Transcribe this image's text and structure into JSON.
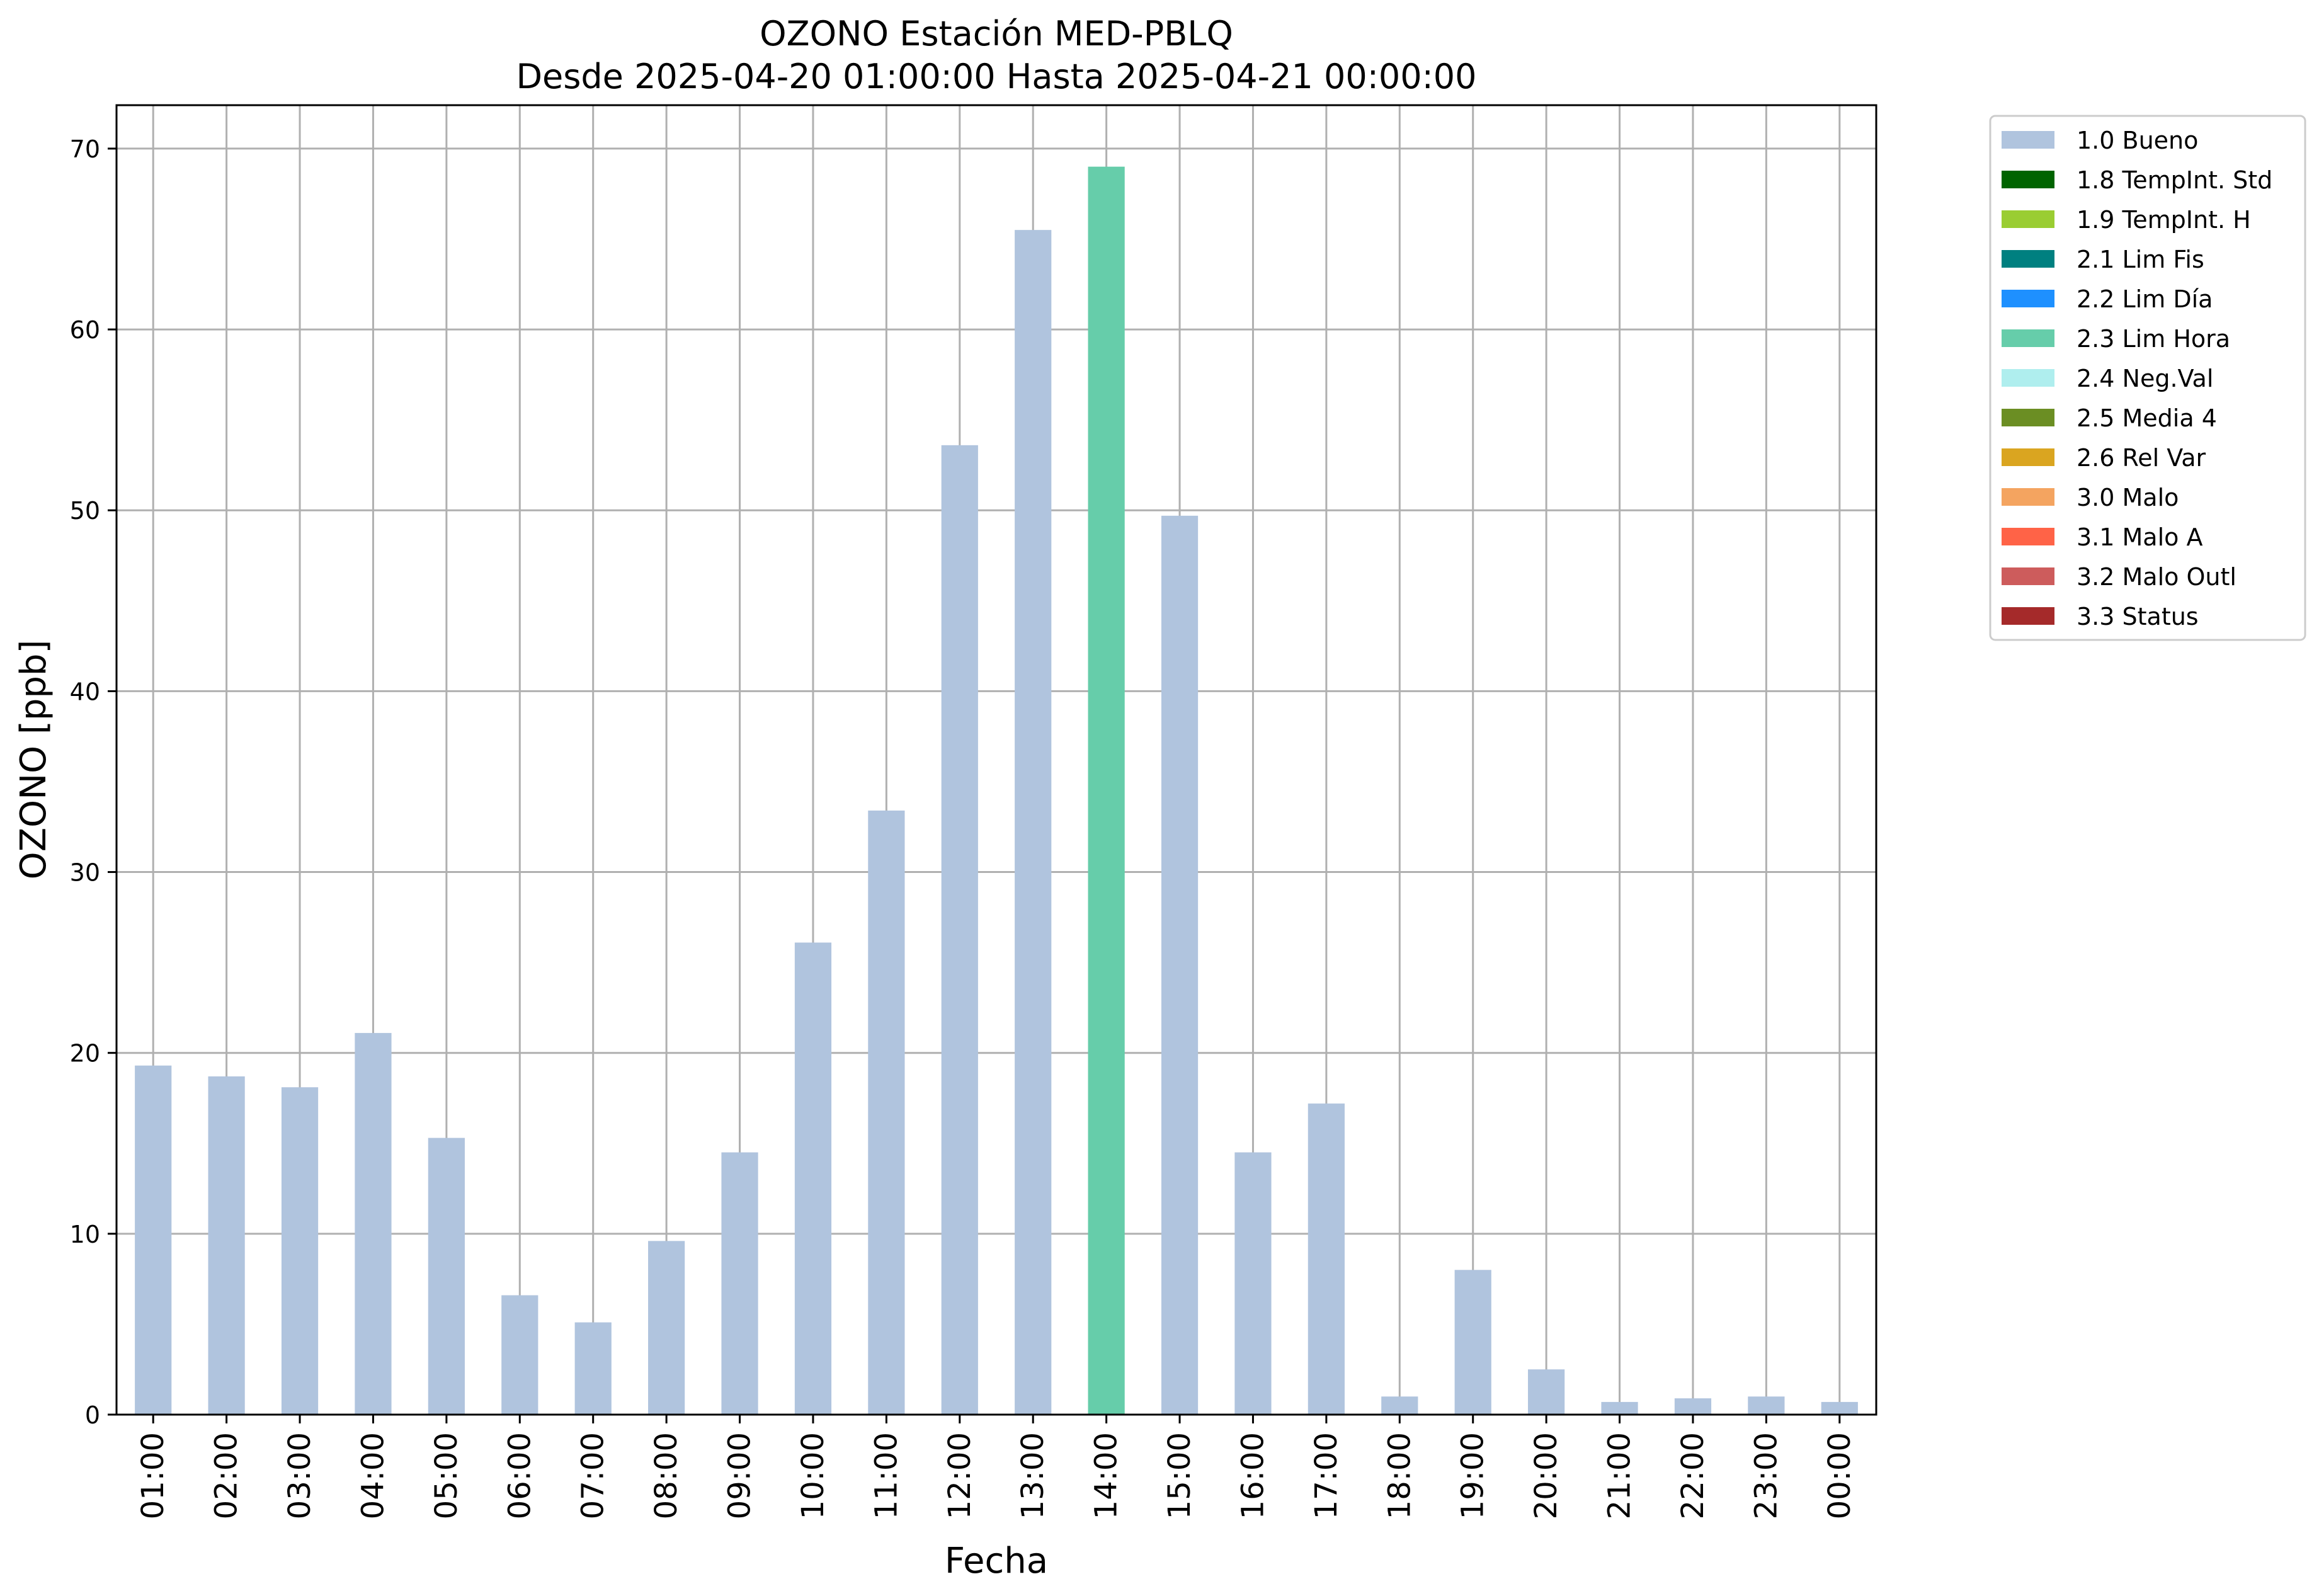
{
  "chart_data": {
    "type": "bar",
    "title": "OZONO Estación MED-PBLQ",
    "subtitle": "Desde 2025-04-20 01:00:00 Hasta 2025-04-21 00:00:00",
    "xlabel": "Fecha",
    "ylabel": "OZONO [ppb]",
    "ylim": [
      0,
      72.4
    ],
    "yticks": [
      "0",
      "10",
      "20",
      "30",
      "40",
      "50",
      "60",
      "70"
    ],
    "grid": true,
    "legend_position": "outside right, top",
    "categories": [
      "01:00",
      "02:00",
      "03:00",
      "04:00",
      "05:00",
      "06:00",
      "07:00",
      "08:00",
      "09:00",
      "10:00",
      "11:00",
      "12:00",
      "13:00",
      "14:00",
      "15:00",
      "16:00",
      "17:00",
      "18:00",
      "19:00",
      "20:00",
      "21:00",
      "22:00",
      "23:00",
      "00:00"
    ],
    "values": [
      19.3,
      18.7,
      18.1,
      21.1,
      15.3,
      6.6,
      5.1,
      9.6,
      14.5,
      26.1,
      33.4,
      53.6,
      65.5,
      69.0,
      49.7,
      14.5,
      17.2,
      1.0,
      8.0,
      2.5,
      0.7,
      0.9,
      1.0,
      0.7
    ],
    "flags": [
      "1.0 Bueno",
      "1.0 Bueno",
      "1.0 Bueno",
      "1.0 Bueno",
      "1.0 Bueno",
      "1.0 Bueno",
      "1.0 Bueno",
      "1.0 Bueno",
      "1.0 Bueno",
      "1.0 Bueno",
      "1.0 Bueno",
      "1.0 Bueno",
      "1.0 Bueno",
      "2.3 Lim Hora",
      "1.0 Bueno",
      "1.0 Bueno",
      "1.0 Bueno",
      "1.0 Bueno",
      "1.0 Bueno",
      "1.0 Bueno",
      "1.0 Bueno",
      "1.0 Bueno",
      "1.0 Bueno",
      "1.0 Bueno"
    ],
    "legend": [
      {
        "label": "1.0 Bueno",
        "color": "#b0c4de"
      },
      {
        "label": "1.8 TempInt. Std",
        "color": "#006400"
      },
      {
        "label": "1.9 TempInt. H",
        "color": "#9acd32"
      },
      {
        "label": "2.1 Lim Fis",
        "color": "#008080"
      },
      {
        "label": "2.2 Lim Día",
        "color": "#1e90ff"
      },
      {
        "label": "2.3 Lim Hora",
        "color": "#66cdaa"
      },
      {
        "label": "2.4 Neg.Val",
        "color": "#afeeee"
      },
      {
        "label": "2.5 Media 4",
        "color": "#6b8e23"
      },
      {
        "label": "2.6 Rel Var",
        "color": "#daa520"
      },
      {
        "label": "3.0 Malo",
        "color": "#f4a460"
      },
      {
        "label": "3.1 Malo A",
        "color": "#ff6347"
      },
      {
        "label": "3.2 Malo Outl",
        "color": "#cd5c5c"
      },
      {
        "label": "3.3 Status",
        "color": "#a52a2a"
      }
    ]
  }
}
